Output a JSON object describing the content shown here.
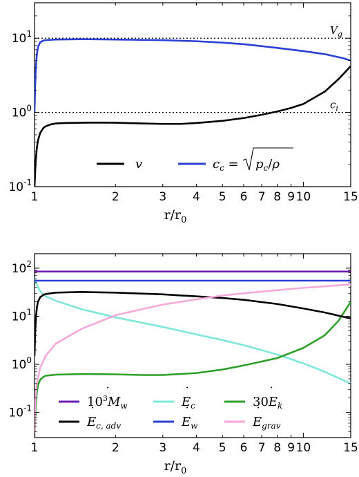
{
  "chart_data": [
    {
      "type": "line",
      "x_scale": "log",
      "y_scale": "log",
      "xlim": [
        1,
        15
      ],
      "ylim": [
        0.1,
        30
      ],
      "xlabel": "r/r",
      "xlabel_sub": "0",
      "x_ticks": [
        {
          "v": 1,
          "label": "1"
        },
        {
          "v": 2,
          "label": "2"
        },
        {
          "v": 3,
          "label": "3"
        },
        {
          "v": 4,
          "label": "4"
        },
        {
          "v": 5,
          "label": "5"
        },
        {
          "v": 6,
          "label": "6"
        },
        {
          "v": 7,
          "label": "7"
        },
        {
          "v": 8,
          "label": "8"
        },
        {
          "v": 9,
          "label": "9"
        },
        {
          "v": 10,
          "label": "10"
        },
        {
          "v": 15,
          "label": "15"
        }
      ],
      "y_ticks": [
        {
          "v": 0.1,
          "base": "10",
          "exp": "-1"
        },
        {
          "v": 1,
          "base": "10",
          "exp": "0"
        },
        {
          "v": 10,
          "base": "10",
          "exp": "1"
        }
      ],
      "hlines": [
        {
          "y": 10,
          "style": "dotted",
          "label": "V",
          "label_sub": "g"
        },
        {
          "y": 1,
          "style": "dotted",
          "label": "c",
          "label_sub": "i"
        }
      ],
      "series": [
        {
          "name": "v",
          "color": "#000000",
          "x": [
            1.0,
            1.005,
            1.01,
            1.02,
            1.03,
            1.05,
            1.08,
            1.1,
            1.15,
            1.2,
            1.3,
            1.5,
            1.7,
            2.0,
            2.5,
            3.0,
            3.5,
            4.0,
            5.0,
            6.0,
            7.0,
            8.0,
            9.0,
            10.0,
            12.0,
            13.5,
            15.0
          ],
          "y": [
            0.1,
            0.15,
            0.22,
            0.33,
            0.42,
            0.53,
            0.62,
            0.65,
            0.69,
            0.71,
            0.72,
            0.725,
            0.73,
            0.725,
            0.71,
            0.7,
            0.7,
            0.72,
            0.77,
            0.84,
            0.93,
            1.03,
            1.15,
            1.3,
            1.9,
            2.8,
            4.2
          ]
        },
        {
          "name": "c_c = √(p_c/ρ)",
          "color": "#2a3fd4",
          "x": [
            1.0,
            1.005,
            1.01,
            1.02,
            1.03,
            1.05,
            1.08,
            1.1,
            1.2,
            1.5,
            2.0,
            3.0,
            4.0,
            5.0,
            6.0,
            8.0,
            10.0,
            12.0,
            14.0,
            15.0
          ],
          "y": [
            1.0,
            2.2,
            3.6,
            6.0,
            7.6,
            8.8,
            9.3,
            9.4,
            9.6,
            9.7,
            9.6,
            9.4,
            9.1,
            8.7,
            8.3,
            7.4,
            6.7,
            6.1,
            5.4,
            5.0
          ]
        }
      ],
      "legend": {
        "placement": "lower-right",
        "entries": [
          "v",
          "c_c = √(p_c/ρ)"
        ]
      }
    },
    {
      "type": "line",
      "x_scale": "log",
      "y_scale": "log",
      "xlim": [
        1,
        15
      ],
      "ylim": [
        0.03,
        200
      ],
      "xlabel": "r/r",
      "xlabel_sub": "0",
      "x_ticks": [
        {
          "v": 1,
          "label": "1"
        },
        {
          "v": 2,
          "label": "2"
        },
        {
          "v": 3,
          "label": "3"
        },
        {
          "v": 4,
          "label": "4"
        },
        {
          "v": 5,
          "label": "5"
        },
        {
          "v": 6,
          "label": "6"
        },
        {
          "v": 7,
          "label": "7"
        },
        {
          "v": 8,
          "label": "8"
        },
        {
          "v": 9,
          "label": "9"
        },
        {
          "v": 10,
          "label": "10"
        },
        {
          "v": 15,
          "label": "15"
        }
      ],
      "y_ticks": [
        {
          "v": 0.1,
          "base": "10",
          "exp": "-1"
        },
        {
          "v": 1,
          "base": "10",
          "exp": "0"
        },
        {
          "v": 10,
          "base": "10",
          "exp": "1"
        },
        {
          "v": 100,
          "base": "10",
          "exp": "2"
        }
      ],
      "series": [
        {
          "name": "10³Ṁ_w",
          "color": "#6a1fb0",
          "x": [
            1.0,
            15.0
          ],
          "y": [
            85,
            85
          ]
        },
        {
          "name": "Ė_c",
          "color": "#7fe7d9",
          "x": [
            1.0,
            1.02,
            1.05,
            1.1,
            1.2,
            1.5,
            2.0,
            3.0,
            4.0,
            5.0,
            6.0,
            8.0,
            10.0,
            12.0,
            15.0
          ],
          "y": [
            62,
            45,
            33,
            26,
            21,
            14,
            9.5,
            6.0,
            4.2,
            3.2,
            2.5,
            1.6,
            1.05,
            0.7,
            0.4
          ]
        },
        {
          "name": "30Ė_k",
          "color": "#2ea02a",
          "x": [
            1.0,
            1.005,
            1.01,
            1.02,
            1.03,
            1.05,
            1.08,
            1.1,
            1.2,
            1.5,
            2.0,
            2.5,
            3.0,
            4.0,
            5.0,
            6.0,
            8.0,
            10.0,
            12.0,
            13.5,
            15.0
          ],
          "y": [
            0.03,
            0.07,
            0.13,
            0.26,
            0.37,
            0.48,
            0.55,
            0.58,
            0.61,
            0.63,
            0.62,
            0.6,
            0.6,
            0.66,
            0.78,
            0.95,
            1.35,
            2.2,
            4.0,
            8.0,
            20
          ]
        },
        {
          "name": "Ė_c,adv",
          "color": "#000000",
          "x": [
            1.0,
            1.005,
            1.01,
            1.02,
            1.03,
            1.05,
            1.08,
            1.1,
            1.2,
            1.5,
            2.0,
            3.0,
            4.0,
            5.0,
            6.0,
            8.0,
            10.0,
            12.0,
            15.0
          ],
          "y": [
            1.5,
            4,
            8,
            15,
            20,
            25,
            28,
            29,
            31,
            32,
            31,
            28.5,
            26,
            24,
            22,
            18,
            14.5,
            12,
            9
          ]
        },
        {
          "name": "Ė_w",
          "color": "#2a3fd4",
          "x": [
            1.0,
            15.0
          ],
          "y": [
            55,
            55
          ]
        },
        {
          "name": "Ė_grav",
          "color": "#f5a9d8",
          "x": [
            1.0,
            1.005,
            1.01,
            1.02,
            1.05,
            1.1,
            1.2,
            1.5,
            2.0,
            2.5,
            3.0,
            4.0,
            5.0,
            6.0,
            8.0,
            10.0,
            12.0,
            15.0
          ],
          "y": [
            0.03,
            0.12,
            0.22,
            0.4,
            0.85,
            1.5,
            2.7,
            5.5,
            10.5,
            14,
            17.5,
            22.5,
            27,
            30,
            35,
            39,
            42,
            46
          ]
        }
      ],
      "legend": {
        "placement": "lower-center",
        "columns": 3
      }
    }
  ]
}
